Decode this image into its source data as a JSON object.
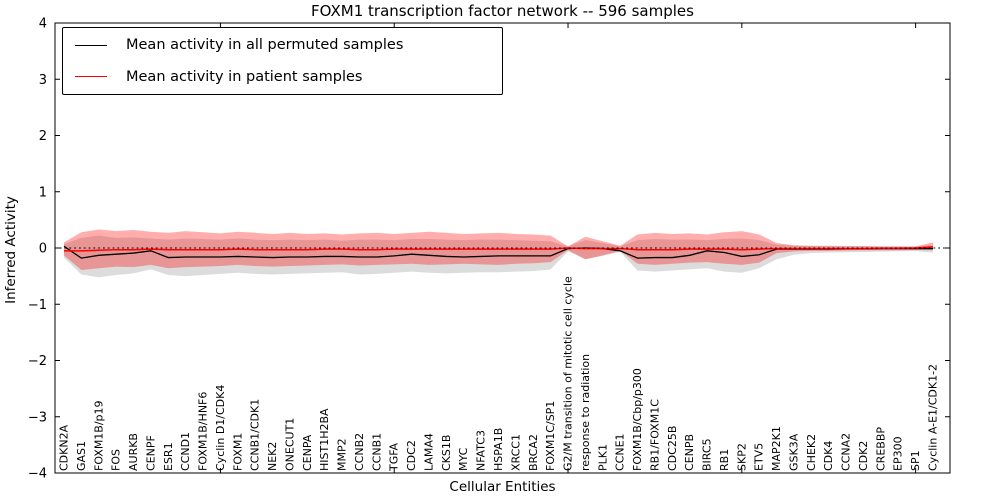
{
  "chart_data": {
    "type": "line",
    "title": "FOXM1 transcription factor network -- 596 samples",
    "xlabel": "Cellular Entities",
    "ylabel": "Inferred Activity",
    "ylim": [
      -4,
      4
    ],
    "ytick_labels": [
      "4",
      "3",
      "2",
      "1",
      "0",
      "−1",
      "−2",
      "−3",
      "−4"
    ],
    "ytick_values": [
      4,
      3,
      2,
      1,
      0,
      -1,
      -2,
      -3,
      -4
    ],
    "xtick_label_rotation": 90,
    "grid": false,
    "legend_position": "upper left",
    "zero_line_style": "dotted",
    "categories": [
      "CDKN2A",
      "GAS1",
      "FOXM1B/p19",
      "FOS",
      "AURKB",
      "CENPF",
      "ESR1",
      "CCND1",
      "FOXM1B/HNF6",
      "Cyclin D1/CDK4",
      "FOXM1",
      "CCNB1/CDK1",
      "NEK2",
      "ONECUT1",
      "CENPA",
      "HIST1H2BA",
      "MMP2",
      "CCNB2",
      "CCNB1",
      "TGFA",
      "CDC2",
      "LAMA4",
      "CKS1B",
      "MYC",
      "NFATC3",
      "HSPA1B",
      "XRCC1",
      "BRCA2",
      "FOXM1C/SP1",
      "G2/M transition of mitotic cell cycle",
      "response to radiation",
      "PLK1",
      "CCNE1",
      "FOXM1B/Cbp/p300",
      "RB1/FOXM1C",
      "CDC25B",
      "CENPB",
      "BIRC5",
      "RB1",
      "SKP2",
      "ETV5",
      "MAP2K1",
      "GSK3A",
      "CHEK2",
      "CDK4",
      "CCNA2",
      "CDK2",
      "CREBBP",
      "EP300",
      "SP1",
      "Cyclin A-E1/CDK1-2"
    ],
    "series": [
      {
        "name": "Mean activity in all permuted samples",
        "color": "#000000",
        "values": [
          0.03,
          -0.18,
          -0.13,
          -0.11,
          -0.09,
          -0.05,
          -0.17,
          -0.16,
          -0.16,
          -0.16,
          -0.15,
          -0.16,
          -0.17,
          -0.16,
          -0.16,
          -0.15,
          -0.15,
          -0.16,
          -0.16,
          -0.14,
          -0.11,
          -0.13,
          -0.15,
          -0.16,
          -0.15,
          -0.14,
          -0.14,
          -0.14,
          -0.14,
          -0.01,
          0.0,
          -0.01,
          -0.05,
          -0.18,
          -0.17,
          -0.17,
          -0.13,
          -0.05,
          -0.08,
          -0.15,
          -0.12,
          -0.02,
          -0.02,
          -0.02,
          -0.02,
          -0.015,
          -0.015,
          -0.01,
          -0.01,
          -0.01,
          -0.01
        ]
      },
      {
        "name": "Mean activity in patient samples",
        "color": "#ff0000",
        "values": [
          -0.05,
          -0.05,
          -0.04,
          -0.03,
          -0.03,
          -0.02,
          -0.03,
          -0.03,
          -0.03,
          -0.03,
          -0.02,
          -0.03,
          -0.03,
          -0.03,
          -0.03,
          -0.02,
          -0.02,
          -0.03,
          -0.03,
          -0.02,
          -0.02,
          -0.02,
          -0.02,
          -0.02,
          -0.02,
          -0.02,
          -0.02,
          -0.02,
          -0.02,
          0.0,
          -0.01,
          -0.01,
          -0.01,
          -0.03,
          -0.03,
          -0.03,
          -0.02,
          -0.02,
          -0.02,
          -0.03,
          -0.02,
          -0.01,
          -0.01,
          -0.01,
          -0.01,
          -0.01,
          -0.01,
          -0.005,
          -0.005,
          0.0,
          0.02
        ]
      }
    ],
    "bands": [
      {
        "name": "permuted samples band",
        "color": "#8a8a8a",
        "opacity": 0.3,
        "upper": [
          0.07,
          0.18,
          0.22,
          0.18,
          0.19,
          0.17,
          0.15,
          0.17,
          0.16,
          0.15,
          0.17,
          0.15,
          0.14,
          0.15,
          0.14,
          0.15,
          0.13,
          0.15,
          0.15,
          0.14,
          0.16,
          0.16,
          0.15,
          0.14,
          0.15,
          0.15,
          0.14,
          0.13,
          0.12,
          0.03,
          0.14,
          0.09,
          0.03,
          0.14,
          0.16,
          0.15,
          0.15,
          0.14,
          0.16,
          0.17,
          0.14,
          0.06,
          0.04,
          0.035,
          0.03,
          0.03,
          0.03,
          0.025,
          0.025,
          0.025,
          0.05
        ],
        "lower": [
          -0.17,
          -0.47,
          -0.52,
          -0.48,
          -0.45,
          -0.38,
          -0.48,
          -0.5,
          -0.48,
          -0.46,
          -0.44,
          -0.46,
          -0.47,
          -0.46,
          -0.45,
          -0.44,
          -0.43,
          -0.47,
          -0.46,
          -0.44,
          -0.42,
          -0.44,
          -0.45,
          -0.44,
          -0.43,
          -0.43,
          -0.42,
          -0.41,
          -0.38,
          -0.06,
          -0.2,
          -0.14,
          -0.07,
          -0.4,
          -0.42,
          -0.4,
          -0.38,
          -0.36,
          -0.42,
          -0.44,
          -0.36,
          -0.2,
          -0.12,
          -0.09,
          -0.08,
          -0.075,
          -0.07,
          -0.065,
          -0.06,
          -0.055,
          -0.08
        ]
      },
      {
        "name": "patient samples band",
        "color": "#ff0000",
        "opacity": 0.32,
        "upper": [
          0.1,
          0.28,
          0.33,
          0.3,
          0.32,
          0.29,
          0.27,
          0.3,
          0.28,
          0.26,
          0.29,
          0.27,
          0.25,
          0.27,
          0.25,
          0.26,
          0.24,
          0.26,
          0.27,
          0.25,
          0.27,
          0.29,
          0.27,
          0.25,
          0.26,
          0.27,
          0.25,
          0.24,
          0.22,
          0.03,
          0.2,
          0.12,
          0.04,
          0.24,
          0.27,
          0.25,
          0.26,
          0.24,
          0.28,
          0.3,
          0.24,
          0.09,
          0.05,
          0.04,
          0.04,
          0.035,
          0.035,
          0.03,
          0.03,
          0.03,
          0.1
        ],
        "lower": [
          -0.13,
          -0.39,
          -0.36,
          -0.33,
          -0.34,
          -0.3,
          -0.36,
          -0.34,
          -0.33,
          -0.32,
          -0.3,
          -0.32,
          -0.33,
          -0.32,
          -0.31,
          -0.3,
          -0.29,
          -0.31,
          -0.3,
          -0.29,
          -0.28,
          -0.3,
          -0.29,
          -0.28,
          -0.29,
          -0.3,
          -0.28,
          -0.27,
          -0.25,
          -0.04,
          -0.2,
          -0.13,
          -0.05,
          -0.28,
          -0.3,
          -0.28,
          -0.26,
          -0.25,
          -0.28,
          -0.3,
          -0.26,
          -0.09,
          -0.06,
          -0.05,
          -0.05,
          -0.045,
          -0.04,
          -0.04,
          -0.04,
          -0.035,
          -0.04
        ]
      }
    ]
  }
}
